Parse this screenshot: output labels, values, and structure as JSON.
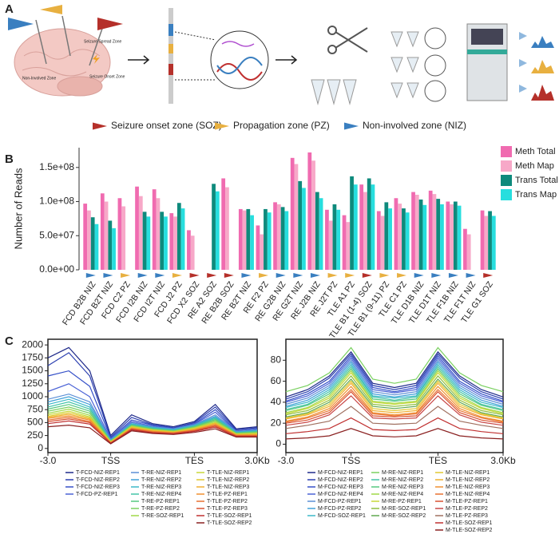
{
  "panel_labels": [
    "A",
    "B",
    "C"
  ],
  "diagram": {
    "brain_labels": [
      "Seizure Spread Zone",
      "Non-Involved Zone",
      "Seizure Onset Zone"
    ],
    "zone_legend": [
      {
        "label": "Seizure onset zone (SOZ)",
        "color": "#b5302a"
      },
      {
        "label": "Propagation zone (PZ)",
        "color": "#e8b040"
      },
      {
        "label": "Non-involved zone (NIZ)",
        "color": "#3a7fc0"
      }
    ]
  },
  "chart_data": [
    {
      "type": "bar",
      "ylabel": "Number of Reads",
      "categories": [
        "FCD B2B NIZ",
        "FCD B2T NIZ",
        "FCD C2 PZ",
        "FCD I2B NIZ",
        "FCD I2T NIZ",
        "FCD J2 PZ",
        "FCD X2 SOZ",
        "RE A2 SOZ",
        "RE B2B SOZ",
        "RE B2T NIZ",
        "RE F2 PZ",
        "RE G2B NIZ",
        "RE G2T NIZ",
        "RE J2B NIZ",
        "RE J2T PZ",
        "TLE A1 PZ",
        "TLE B1 (1-4) SOZ",
        "TLE B1 (9-11) PZ",
        "TLE C1 PZ",
        "TLE D1B NIZ",
        "TLE D1T NIZ",
        "TLE F1B NIZ",
        "TLE F1T NIZ",
        "TLE G1 SOZ"
      ],
      "category_colors": [
        "#3a7fc0",
        "#3a7fc0",
        "#e8b040",
        "#3a7fc0",
        "#3a7fc0",
        "#e8b040",
        "#b5302a",
        "#b5302a",
        "#b5302a",
        "#3a7fc0",
        "#e8b040",
        "#3a7fc0",
        "#3a7fc0",
        "#3a7fc0",
        "#e8b040",
        "#e8b040",
        "#b5302a",
        "#e8b040",
        "#e8b040",
        "#3a7fc0",
        "#3a7fc0",
        "#3a7fc0",
        "#3a7fc0",
        "#b5302a"
      ],
      "series": [
        {
          "name": "Meth Total",
          "color": "#f06bb0",
          "values": [
            97000000,
            112000000,
            105000000,
            122000000,
            118000000,
            83000000,
            58000000,
            null,
            134000000,
            89000000,
            65000000,
            99000000,
            164000000,
            172000000,
            88000000,
            80000000,
            125000000,
            86000000,
            105000000,
            114000000,
            116000000,
            100000000,
            60000000,
            87000000
          ]
        },
        {
          "name": "Meth Map",
          "color": "#f7a8c8",
          "values": [
            87000000,
            100000000,
            93000000,
            108000000,
            105000000,
            78000000,
            50000000,
            null,
            121000000,
            87000000,
            52000000,
            96000000,
            155000000,
            160000000,
            72000000,
            70000000,
            114000000,
            79000000,
            97000000,
            110000000,
            111000000,
            96000000,
            52000000,
            79000000
          ]
        },
        {
          "name": "Trans Total",
          "color": "#0e8a7c",
          "values": [
            77000000,
            72000000,
            null,
            85000000,
            85000000,
            98000000,
            null,
            126000000,
            null,
            89000000,
            89000000,
            92000000,
            130000000,
            114000000,
            96000000,
            137000000,
            134000000,
            99000000,
            90000000,
            103000000,
            104000000,
            100000000,
            null,
            86000000
          ]
        },
        {
          "name": "Trans Map",
          "color": "#27dede",
          "values": [
            67000000,
            61000000,
            null,
            78000000,
            78000000,
            90000000,
            null,
            115000000,
            null,
            80000000,
            84000000,
            86000000,
            120000000,
            105000000,
            88000000,
            125000000,
            125000000,
            90000000,
            84000000,
            95000000,
            96000000,
            94000000,
            null,
            79000000
          ]
        }
      ],
      "ylim": [
        0,
        179000000
      ],
      "yticks": [
        {
          "value": 0,
          "label": "0.0e+00"
        },
        {
          "value": 50000000,
          "label": "5.0e+07"
        },
        {
          "value": 100000000,
          "label": "1.0e+08"
        },
        {
          "value": 150000000,
          "label": "1.5e+08"
        }
      ],
      "legend": "right"
    },
    {
      "type": "line",
      "x": [
        0,
        1,
        2,
        3,
        4,
        5,
        6,
        7,
        8,
        9,
        10
      ],
      "xlim": [
        0,
        10
      ],
      "xticks": [
        {
          "value": 0,
          "label": "-3.0"
        },
        {
          "value": 3,
          "label": "TSS"
        },
        {
          "value": 7,
          "label": "TES"
        },
        {
          "value": 10,
          "label": "3.0Kb"
        }
      ],
      "ylim": [
        -80,
        2110
      ],
      "yticks": [
        0,
        250,
        500,
        750,
        1000,
        1250,
        1500,
        1750,
        2000
      ],
      "series": [
        {
          "name": "T-FCD-NIZ-REP1",
          "color": "#1f2a8a",
          "values": [
            1750,
            1950,
            1500,
            250,
            650,
            480,
            420,
            520,
            850,
            380,
            420
          ]
        },
        {
          "name": "T-FCD-NIZ-REP2",
          "color": "#2b3fb0",
          "values": [
            1600,
            1850,
            1400,
            220,
            600,
            460,
            400,
            500,
            800,
            360,
            400
          ]
        },
        {
          "name": "T-FCD-NIZ-REP3",
          "color": "#3550c8",
          "values": [
            1400,
            1500,
            1200,
            200,
            550,
            450,
            390,
            480,
            750,
            340,
            380
          ]
        },
        {
          "name": "T-FCD-PZ-REP1",
          "color": "#4a62d6",
          "values": [
            1100,
            1250,
            1000,
            180,
            520,
            430,
            380,
            470,
            700,
            330,
            370
          ]
        },
        {
          "name": "T-RE-NIZ-REP1",
          "color": "#5b8fd6",
          "values": [
            950,
            1050,
            900,
            170,
            500,
            420,
            380,
            460,
            650,
            330,
            360
          ]
        },
        {
          "name": "T-RE-NIZ-REP2",
          "color": "#40a0d8",
          "values": [
            900,
            1000,
            850,
            160,
            480,
            410,
            370,
            450,
            620,
            320,
            350
          ]
        },
        {
          "name": "T-RE-NIZ-REP3",
          "color": "#3cb8c8",
          "values": [
            850,
            950,
            800,
            150,
            470,
            400,
            360,
            440,
            600,
            310,
            340
          ]
        },
        {
          "name": "T-RE-NIZ-REP4",
          "color": "#44c4a8",
          "values": [
            800,
            900,
            760,
            150,
            460,
            390,
            350,
            430,
            580,
            300,
            330
          ]
        },
        {
          "name": "T-RE-PZ-REP1",
          "color": "#55c880",
          "values": [
            760,
            850,
            720,
            140,
            450,
            380,
            340,
            420,
            560,
            300,
            320
          ]
        },
        {
          "name": "T-RE-PZ-REP2",
          "color": "#7ad060",
          "values": [
            720,
            800,
            680,
            140,
            440,
            370,
            340,
            410,
            540,
            290,
            310
          ]
        },
        {
          "name": "T-RE-SOZ-REP1",
          "color": "#a0d848",
          "values": [
            680,
            760,
            640,
            130,
            430,
            360,
            330,
            400,
            520,
            280,
            300
          ]
        },
        {
          "name": "T-TLE-NIZ-REP1",
          "color": "#c8d838",
          "values": [
            650,
            720,
            610,
            130,
            420,
            360,
            320,
            390,
            500,
            280,
            290
          ]
        },
        {
          "name": "T-TLE-NIZ-REP2",
          "color": "#e0c830",
          "values": [
            620,
            690,
            590,
            120,
            410,
            350,
            320,
            380,
            490,
            270,
            280
          ]
        },
        {
          "name": "T-TLE-NIZ-REP3",
          "color": "#f0b030",
          "values": [
            600,
            660,
            570,
            120,
            400,
            340,
            310,
            370,
            480,
            260,
            270
          ]
        },
        {
          "name": "T-TLE-PZ-REP1",
          "color": "#f09030",
          "values": [
            580,
            630,
            550,
            110,
            390,
            330,
            300,
            360,
            460,
            260,
            260
          ]
        },
        {
          "name": "T-TLE-PZ-REP2",
          "color": "#e87030",
          "values": [
            550,
            600,
            520,
            110,
            380,
            320,
            300,
            350,
            450,
            250,
            250
          ]
        },
        {
          "name": "T-TLE-PZ-REP3",
          "color": "#d85030",
          "values": [
            520,
            570,
            500,
            100,
            370,
            310,
            290,
            340,
            430,
            240,
            240
          ]
        },
        {
          "name": "T-TLE-SOZ-REP1",
          "color": "#c03030",
          "values": [
            480,
            530,
            470,
            100,
            360,
            300,
            280,
            330,
            410,
            230,
            230
          ]
        },
        {
          "name": "T-TLE-SOZ-REP2",
          "color": "#8a2020",
          "values": [
            420,
            450,
            400,
            90,
            340,
            290,
            270,
            310,
            380,
            220,
            220
          ]
        }
      ]
    },
    {
      "type": "line",
      "x": [
        0,
        1,
        2,
        3,
        4,
        5,
        6,
        7,
        8,
        9,
        10
      ],
      "xlim": [
        0,
        10
      ],
      "xticks": [
        {
          "value": 0,
          "label": "-3.0"
        },
        {
          "value": 3,
          "label": "TSS"
        },
        {
          "value": 7,
          "label": "TES"
        },
        {
          "value": 10,
          "label": "3.0Kb"
        }
      ],
      "ylim": [
        -8,
        100
      ],
      "yticks": [
        0,
        20,
        40,
        60,
        80
      ],
      "series": [
        {
          "name": "M-FCD-NIZ-REP1",
          "color": "#1f2a8a",
          "values": [
            45,
            52,
            65,
            88,
            58,
            54,
            58,
            88,
            65,
            52,
            45
          ]
        },
        {
          "name": "M-FCD-NIZ-REP2",
          "color": "#2b3fb0",
          "values": [
            43,
            50,
            63,
            86,
            56,
            52,
            56,
            86,
            63,
            50,
            43
          ]
        },
        {
          "name": "M-FCD-NIZ-REP3",
          "color": "#3550c8",
          "values": [
            41,
            48,
            60,
            84,
            54,
            50,
            54,
            84,
            60,
            48,
            41
          ]
        },
        {
          "name": "M-FCD-NIZ-REP4",
          "color": "#4a62d6",
          "values": [
            40,
            46,
            58,
            82,
            52,
            49,
            52,
            82,
            58,
            46,
            40
          ]
        },
        {
          "name": "M-FCD-PZ-REP1",
          "color": "#5b8fd6",
          "values": [
            38,
            44,
            56,
            80,
            50,
            47,
            50,
            80,
            56,
            44,
            38
          ]
        },
        {
          "name": "M-FCD-PZ-REP2",
          "color": "#40a0d8",
          "values": [
            36,
            42,
            54,
            78,
            48,
            45,
            48,
            78,
            54,
            42,
            36
          ]
        },
        {
          "name": "M-FCD-SOZ-REP1",
          "color": "#3cb8c8",
          "values": [
            35,
            40,
            52,
            76,
            46,
            44,
            46,
            76,
            52,
            40,
            35
          ]
        },
        {
          "name": "M-RE-NIZ-REP1",
          "color": "#7ad060",
          "values": [
            50,
            56,
            68,
            92,
            62,
            58,
            62,
            92,
            68,
            56,
            50
          ]
        },
        {
          "name": "M-RE-NIZ-REP2",
          "color": "#44c4a8",
          "values": [
            33,
            38,
            50,
            74,
            45,
            42,
            45,
            74,
            50,
            38,
            33
          ]
        },
        {
          "name": "M-RE-NIZ-REP3",
          "color": "#55c880",
          "values": [
            32,
            37,
            48,
            72,
            43,
            41,
            43,
            72,
            48,
            37,
            32
          ]
        },
        {
          "name": "M-RE-NIZ-REP4",
          "color": "#a0d848",
          "values": [
            30,
            35,
            46,
            70,
            41,
            39,
            41,
            70,
            46,
            35,
            30
          ]
        },
        {
          "name": "M-RE-PZ-REP1",
          "color": "#c8d838",
          "values": [
            29,
            34,
            44,
            68,
            40,
            38,
            40,
            68,
            44,
            34,
            29
          ]
        },
        {
          "name": "M-RE-SOZ-REP1",
          "color": "#8fbf40",
          "values": [
            28,
            32,
            42,
            65,
            38,
            36,
            38,
            65,
            42,
            32,
            28
          ]
        },
        {
          "name": "M-RE-SOZ-REP2",
          "color": "#60a850",
          "values": [
            26,
            30,
            40,
            62,
            36,
            34,
            36,
            62,
            40,
            30,
            26
          ]
        },
        {
          "name": "M-TLE-NIZ-REP1",
          "color": "#e0c830",
          "values": [
            25,
            29,
            38,
            60,
            34,
            32,
            34,
            60,
            38,
            29,
            25
          ]
        },
        {
          "name": "M-TLE-NIZ-REP2",
          "color": "#f0b030",
          "values": [
            24,
            28,
            36,
            58,
            32,
            30,
            32,
            58,
            36,
            28,
            24
          ]
        },
        {
          "name": "M-TLE-NIZ-REP3",
          "color": "#f09030",
          "values": [
            22,
            26,
            34,
            55,
            30,
            28,
            30,
            55,
            34,
            26,
            22
          ]
        },
        {
          "name": "M-TLE-NIZ-REP4",
          "color": "#e87030",
          "values": [
            21,
            25,
            32,
            52,
            29,
            27,
            29,
            52,
            32,
            25,
            21
          ]
        },
        {
          "name": "M-TLE-PZ-REP1",
          "color": "#d85030",
          "values": [
            20,
            23,
            30,
            50,
            27,
            26,
            27,
            50,
            30,
            23,
            20
          ]
        },
        {
          "name": "M-TLE-PZ-REP2",
          "color": "#c84848",
          "values": [
            18,
            21,
            28,
            46,
            25,
            24,
            25,
            46,
            28,
            21,
            18
          ]
        },
        {
          "name": "M-TLE-PZ-REP3",
          "color": "#a07060",
          "values": [
            15,
            18,
            22,
            36,
            20,
            19,
            20,
            36,
            22,
            18,
            15
          ]
        },
        {
          "name": "M-TLE-SOZ-REP1",
          "color": "#c03030",
          "values": [
            10,
            12,
            15,
            25,
            14,
            13,
            14,
            25,
            15,
            12,
            10
          ]
        },
        {
          "name": "M-TLE-SOZ-REP2",
          "color": "#8a2020",
          "values": [
            5,
            6,
            8,
            15,
            8,
            7,
            8,
            15,
            8,
            6,
            5
          ]
        }
      ]
    }
  ]
}
